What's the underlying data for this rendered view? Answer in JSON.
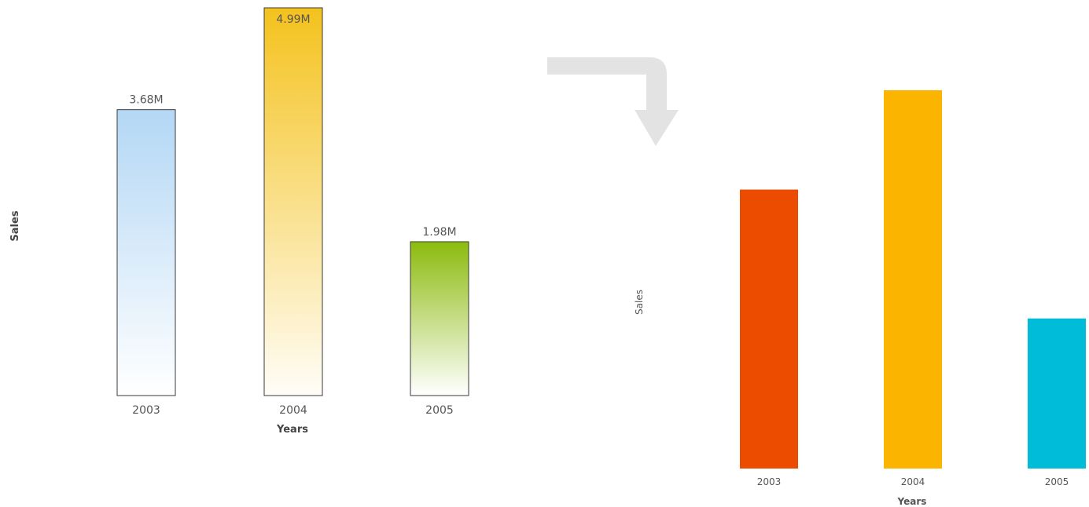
{
  "chart_data": [
    {
      "type": "bar",
      "categories": [
        "2003",
        "2004",
        "2005"
      ],
      "values": [
        3.68,
        4.99,
        1.98
      ],
      "value_labels": [
        "3.68M",
        "4.99M",
        "1.98M"
      ],
      "xlabel": "Years",
      "ylabel": "Sales",
      "ylim": [
        0,
        5
      ],
      "grid": false,
      "colors": [
        "#b3d7f5",
        "#f4c21d",
        "#8cbb0e"
      ],
      "style": "gradient fill with outline"
    },
    {
      "type": "bar",
      "categories": [
        "2003",
        "2004",
        "2005"
      ],
      "values": [
        3.68,
        4.99,
        1.98
      ],
      "xlabel": "Years",
      "ylabel": "Sales",
      "ylim": [
        0,
        5
      ],
      "grid": false,
      "colors": [
        "#eb4c00",
        "#fbb500",
        "#00bcd8"
      ],
      "style": "flat fill"
    }
  ],
  "arrow_icon": "turn-down-arrow-icon",
  "arrow_color": "#e3e3e3"
}
